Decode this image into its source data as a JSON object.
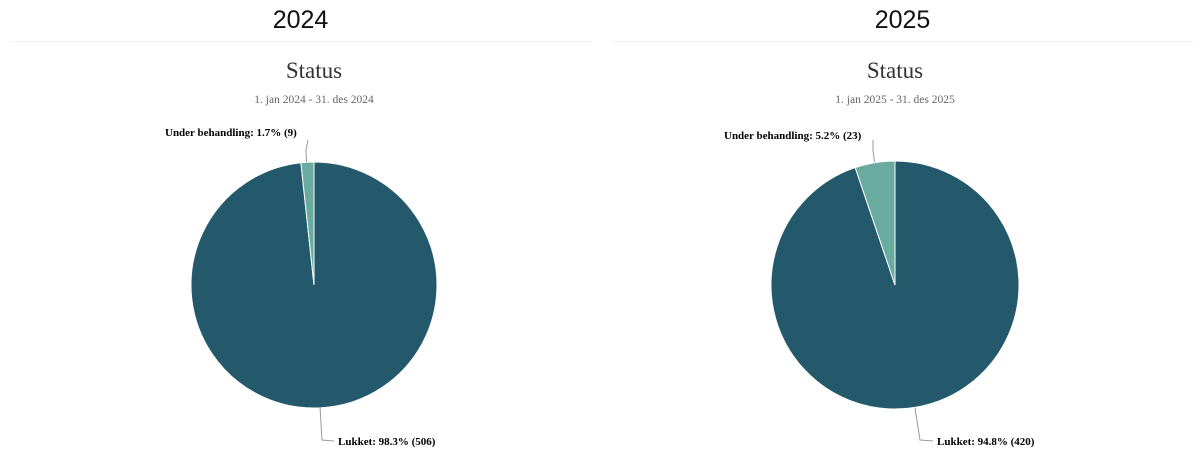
{
  "chart_data": [
    {
      "type": "pie",
      "heading": "2024",
      "title": "Status",
      "subtitle": "1. jan 2024 - 31. des 2024",
      "slices": [
        {
          "label": "Lukket",
          "percent": 98.3,
          "count": 506,
          "display": "Lukket: 98.3% (506)",
          "color": "#24586b"
        },
        {
          "label": "Under behandling",
          "percent": 1.7,
          "count": 9,
          "display": "Under behandling: 1.7% (9)",
          "color": "#69ab9e"
        }
      ]
    },
    {
      "type": "pie",
      "heading": "2025",
      "title": "Status",
      "subtitle": "1. jan 2025 - 31. des 2025",
      "slices": [
        {
          "label": "Lukket",
          "percent": 94.8,
          "count": 420,
          "display": "Lukket: 94.8% (420)",
          "color": "#24586b"
        },
        {
          "label": "Under behandling",
          "percent": 5.2,
          "count": 23,
          "display": "Under behandling: 5.2% (23)",
          "color": "#69ab9e"
        }
      ]
    }
  ]
}
